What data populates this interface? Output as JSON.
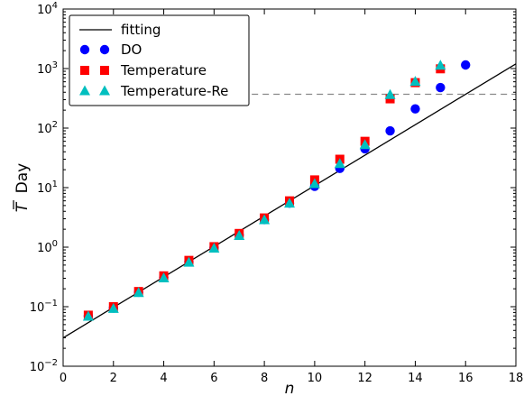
{
  "chart_data": {
    "type": "scatter",
    "xlabel": "n",
    "ylabel": "T Day",
    "ylabel_overline_symbol": "T",
    "ylabel_suffix": "Day",
    "xlim": [
      0,
      18
    ],
    "ylim_log10": [
      -2,
      4
    ],
    "y_scale": "log",
    "x_ticks": [
      0,
      2,
      4,
      6,
      8,
      10,
      12,
      14,
      16,
      18
    ],
    "y_tick_exponents": [
      -2,
      -1,
      0,
      1,
      2,
      3,
      4
    ],
    "legend_position": "top-left",
    "fit_line": {
      "name": "fitting",
      "x": [
        0,
        18
      ],
      "y": [
        0.03,
        1200
      ],
      "color": "#000000"
    },
    "reference_line": {
      "y": 370,
      "x_start": 7.5,
      "color": "#888888",
      "style": "dashed"
    },
    "series": [
      {
        "name": "DO",
        "marker": "circle",
        "color": "#0000ff",
        "x": [
          1,
          2,
          3,
          4,
          5,
          6,
          7,
          8,
          9,
          10,
          11,
          12,
          13,
          14,
          15,
          16
        ],
        "y": [
          0.07,
          0.095,
          0.175,
          0.31,
          0.57,
          0.98,
          1.6,
          2.9,
          5.5,
          10.5,
          21,
          45,
          90,
          210,
          480,
          1150
        ]
      },
      {
        "name": "Temperature",
        "marker": "square",
        "color": "#ff0000",
        "x": [
          1,
          2,
          3,
          4,
          5,
          6,
          7,
          8,
          9,
          10,
          11,
          12,
          13,
          14,
          15
        ],
        "y": [
          0.072,
          0.1,
          0.18,
          0.33,
          0.6,
          1.02,
          1.7,
          3.1,
          6.0,
          13.5,
          30,
          60,
          310,
          580,
          990
        ]
      },
      {
        "name": "Temperature-Re",
        "marker": "triangle",
        "color": "#00bfbf",
        "x": [
          1,
          2,
          3,
          4,
          5,
          6,
          7,
          8,
          9,
          10,
          11,
          12,
          13,
          14,
          15
        ],
        "y": [
          0.068,
          0.092,
          0.17,
          0.3,
          0.55,
          0.95,
          1.55,
          2.85,
          5.4,
          11.5,
          25,
          52,
          360,
          600,
          1120
        ]
      }
    ]
  }
}
